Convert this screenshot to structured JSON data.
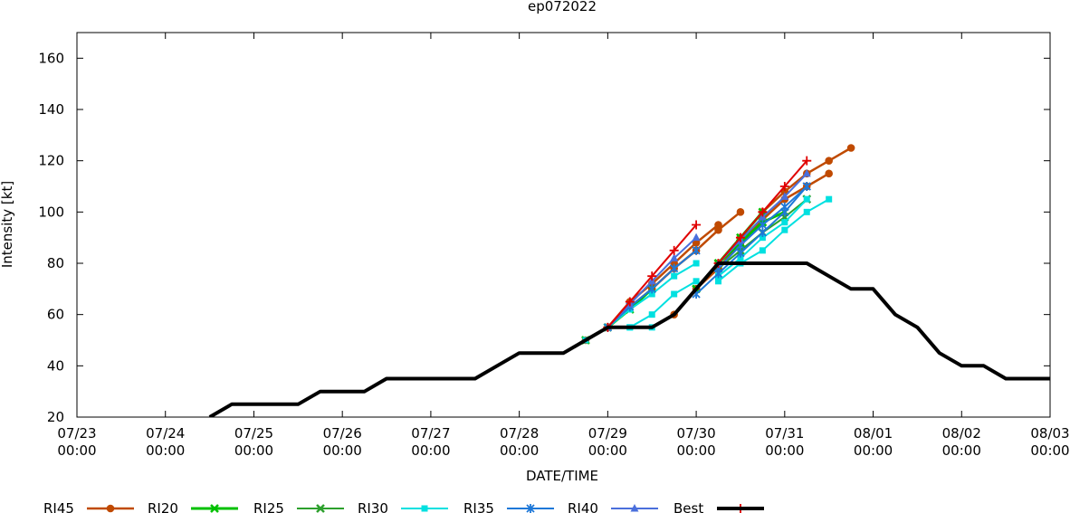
{
  "chart_data": {
    "type": "line",
    "title": "ep072022",
    "xlabel": "DATE/TIME",
    "ylabel": "Intensity [kt]",
    "x_unit": "days from 07/23 00:00",
    "xlim": [
      0,
      11
    ],
    "ylim": [
      20,
      170
    ],
    "x_ticks": [
      {
        "x": 0,
        "line1": "07/23",
        "line2": "00:00"
      },
      {
        "x": 1,
        "line1": "07/24",
        "line2": "00:00"
      },
      {
        "x": 2,
        "line1": "07/25",
        "line2": "00:00"
      },
      {
        "x": 3,
        "line1": "07/26",
        "line2": "00:00"
      },
      {
        "x": 4,
        "line1": "07/27",
        "line2": "00:00"
      },
      {
        "x": 5,
        "line1": "07/28",
        "line2": "00:00"
      },
      {
        "x": 6,
        "line1": "07/29",
        "line2": "00:00"
      },
      {
        "x": 7,
        "line1": "07/30",
        "line2": "00:00"
      },
      {
        "x": 8,
        "line1": "07/31",
        "line2": "00:00"
      },
      {
        "x": 9,
        "line1": "08/01",
        "line2": "00:00"
      },
      {
        "x": 10,
        "line1": "08/02",
        "line2": "00:00"
      },
      {
        "x": 11,
        "line1": "08/03",
        "line2": "00:00"
      }
    ],
    "y_ticks": [
      20,
      40,
      60,
      80,
      100,
      120,
      140,
      160
    ],
    "grid": false,
    "legend_position": "bottom",
    "series": [
      {
        "name": "RI45",
        "color": "#c04a00",
        "marker": "circle",
        "width": 2.5,
        "forecasts": [
          [
            [
              5.75,
              50
            ],
            [
              6.0,
              55
            ],
            [
              6.25,
              65
            ],
            [
              6.5,
              72
            ],
            [
              6.75,
              80
            ],
            [
              7.0,
              88
            ],
            [
              7.25,
              95
            ]
          ],
          [
            [
              6.0,
              55
            ],
            [
              6.25,
              63
            ],
            [
              6.5,
              70
            ],
            [
              6.75,
              78
            ],
            [
              7.0,
              85
            ],
            [
              7.25,
              93
            ],
            [
              7.5,
              100
            ]
          ],
          [
            [
              6.75,
              60
            ],
            [
              7.0,
              70
            ],
            [
              7.25,
              78
            ],
            [
              7.5,
              88
            ],
            [
              7.75,
              97
            ],
            [
              8.0,
              105
            ],
            [
              8.25,
              110
            ],
            [
              8.5,
              115
            ]
          ],
          [
            [
              7.0,
              70
            ],
            [
              7.25,
              80
            ],
            [
              7.5,
              90
            ],
            [
              7.75,
              100
            ],
            [
              8.0,
              108
            ],
            [
              8.25,
              115
            ],
            [
              8.5,
              120
            ],
            [
              8.75,
              125
            ]
          ]
        ]
      },
      {
        "name": "RI20",
        "color": "#00c000",
        "marker": "x",
        "width": 3,
        "forecasts": [
          [
            [
              5.75,
              50
            ],
            [
              6.0,
              55
            ],
            [
              6.25,
              62
            ],
            [
              6.5,
              70
            ]
          ],
          [
            [
              7.0,
              70
            ],
            [
              7.25,
              80
            ],
            [
              7.5,
              90
            ],
            [
              7.75,
              100
            ]
          ],
          [
            [
              7.25,
              80
            ],
            [
              7.5,
              88
            ],
            [
              7.75,
              96
            ],
            [
              8.0,
              100
            ]
          ]
        ]
      },
      {
        "name": "RI25",
        "color": "#2ca02c",
        "marker": "x",
        "width": 2,
        "forecasts": [
          [
            [
              7.25,
              78
            ],
            [
              7.5,
              85
            ],
            [
              7.75,
              92
            ],
            [
              8.0,
              98
            ],
            [
              8.25,
              105
            ]
          ]
        ]
      },
      {
        "name": "RI30",
        "color": "#00e0e0",
        "marker": "square",
        "width": 2,
        "forecasts": [
          [
            [
              5.75,
              50
            ],
            [
              6.0,
              55
            ],
            [
              6.25,
              55
            ],
            [
              6.5,
              55
            ]
          ],
          [
            [
              6.0,
              55
            ],
            [
              6.25,
              62
            ],
            [
              6.5,
              68
            ],
            [
              6.75,
              75
            ],
            [
              7.0,
              80
            ]
          ],
          [
            [
              6.25,
              55
            ],
            [
              6.5,
              60
            ],
            [
              6.75,
              68
            ],
            [
              7.0,
              73
            ]
          ],
          [
            [
              7.25,
              73
            ],
            [
              7.5,
              80
            ],
            [
              7.75,
              85
            ],
            [
              8.0,
              93
            ],
            [
              8.25,
              100
            ],
            [
              8.5,
              105
            ]
          ],
          [
            [
              7.25,
              75
            ],
            [
              7.5,
              82
            ],
            [
              7.75,
              90
            ],
            [
              8.0,
              96
            ],
            [
              8.25,
              105
            ]
          ]
        ]
      },
      {
        "name": "RI35",
        "color": "#1e78d8",
        "marker": "star",
        "width": 2,
        "forecasts": [
          [
            [
              6.0,
              55
            ],
            [
              6.25,
              63
            ],
            [
              6.5,
              70
            ],
            [
              6.75,
              78
            ],
            [
              7.0,
              85
            ]
          ],
          [
            [
              7.0,
              68
            ],
            [
              7.25,
              76
            ],
            [
              7.5,
              84
            ],
            [
              7.75,
              92
            ],
            [
              8.0,
              100
            ],
            [
              8.25,
              110
            ]
          ],
          [
            [
              7.25,
              78
            ],
            [
              7.5,
              87
            ],
            [
              7.75,
              95
            ],
            [
              8.0,
              102
            ],
            [
              8.25,
              110
            ]
          ]
        ]
      },
      {
        "name": "RI40",
        "color": "#4a6fdc",
        "marker": "triangle",
        "width": 2,
        "forecasts": [
          [
            [
              6.0,
              55
            ],
            [
              6.25,
              64
            ],
            [
              6.5,
              73
            ],
            [
              6.75,
              82
            ],
            [
              7.0,
              90
            ]
          ],
          [
            [
              7.25,
              80
            ],
            [
              7.5,
              89
            ],
            [
              7.75,
              98
            ],
            [
              8.0,
              106
            ],
            [
              8.25,
              115
            ]
          ]
        ]
      },
      {
        "name": "Best",
        "legend_marker": "plus",
        "color": "#e00000",
        "marker": "plus",
        "width": 2,
        "forecasts": [
          [
            [
              6.0,
              55
            ],
            [
              6.25,
              65
            ],
            [
              6.5,
              75
            ],
            [
              6.75,
              85
            ],
            [
              7.0,
              95
            ]
          ],
          [
            [
              7.25,
              80
            ],
            [
              7.5,
              90
            ],
            [
              7.75,
              100
            ],
            [
              8.0,
              110
            ],
            [
              8.25,
              120
            ]
          ]
        ]
      },
      {
        "name": "",
        "legend_marker": "line",
        "color": "#000000",
        "marker": "none",
        "width": 4,
        "forecasts": [
          [
            [
              1.5,
              20
            ],
            [
              1.75,
              25
            ],
            [
              2.0,
              25
            ],
            [
              2.25,
              25
            ],
            [
              2.5,
              25
            ],
            [
              2.75,
              30
            ],
            [
              3.0,
              30
            ],
            [
              3.25,
              30
            ],
            [
              3.5,
              35
            ],
            [
              3.75,
              35
            ],
            [
              4.0,
              35
            ],
            [
              4.25,
              35
            ],
            [
              4.5,
              35
            ],
            [
              4.75,
              40
            ],
            [
              5.0,
              45
            ],
            [
              5.25,
              45
            ],
            [
              5.5,
              45
            ],
            [
              5.75,
              50
            ],
            [
              6.0,
              55
            ],
            [
              6.25,
              55
            ],
            [
              6.5,
              55
            ],
            [
              6.75,
              60
            ],
            [
              7.0,
              70
            ],
            [
              7.25,
              80
            ],
            [
              7.5,
              80
            ],
            [
              7.75,
              80
            ],
            [
              8.0,
              80
            ],
            [
              8.25,
              80
            ],
            [
              8.5,
              75
            ],
            [
              8.75,
              70
            ],
            [
              9.0,
              70
            ],
            [
              9.25,
              60
            ],
            [
              9.5,
              55
            ],
            [
              9.75,
              45
            ],
            [
              10.0,
              40
            ],
            [
              10.25,
              40
            ],
            [
              10.5,
              35
            ],
            [
              10.75,
              35
            ],
            [
              11.0,
              35
            ]
          ]
        ]
      }
    ],
    "legend": [
      {
        "label": "RI45",
        "series": 0
      },
      {
        "label": "RI20",
        "series": 1
      },
      {
        "label": "RI25",
        "series": 2
      },
      {
        "label": "RI30",
        "series": 3
      },
      {
        "label": "RI35",
        "series": 4
      },
      {
        "label": "RI40",
        "series": 5
      },
      {
        "label": "Best",
        "series": 6
      },
      {
        "label": "",
        "series": 7
      }
    ]
  }
}
